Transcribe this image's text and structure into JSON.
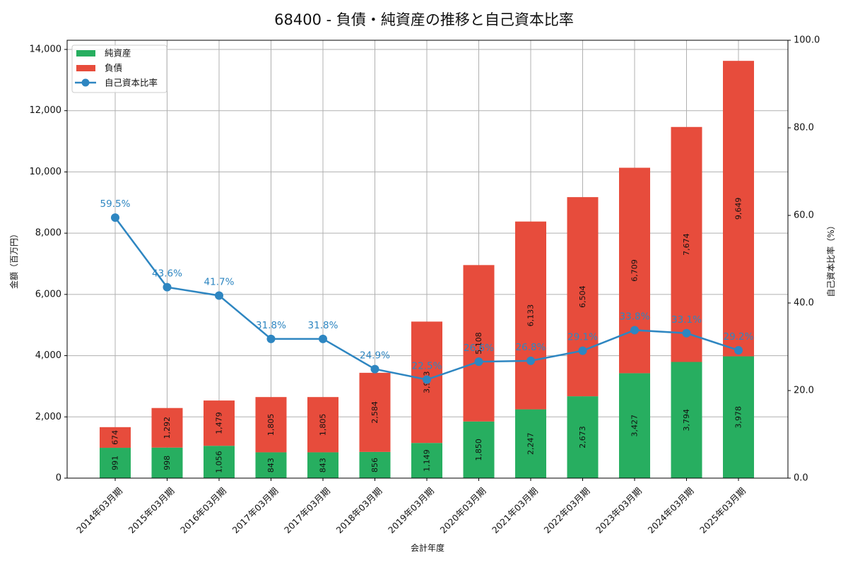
{
  "title": "68400 - 負債・純資産の推移と自己資本比率",
  "colors": {
    "net_assets": "#27ae60",
    "liabilities": "#e74c3c",
    "ratio": "#2e86c1",
    "grid": "#b0b0b0"
  },
  "legend": {
    "items": [
      {
        "label": "純資産",
        "type": "bar",
        "color": "#27ae60"
      },
      {
        "label": "負債",
        "type": "bar",
        "color": "#e74c3c"
      },
      {
        "label": "自己資本比率",
        "type": "line",
        "color": "#2e86c1"
      }
    ]
  },
  "axes": {
    "xlabel": "会計年度",
    "ylabel_left": "金額（百万円）",
    "ylabel_right": "自己資本比率（%）",
    "left_ticks": [
      "0",
      "2,000",
      "4,000",
      "6,000",
      "8,000",
      "10,000",
      "12,000",
      "14,000"
    ],
    "right_ticks": [
      "0.0",
      "20.0",
      "40.0",
      "60.0",
      "80.0",
      "100.0"
    ]
  },
  "chart_data": {
    "type": "bar",
    "stacked": true,
    "title": "68400 - 負債・純資産の推移と自己資本比率",
    "xlabel": "会計年度",
    "ylabel": "金額（百万円）",
    "ylabel_right": "自己資本比率（%）",
    "ylim": [
      0,
      14000
    ],
    "ylim_right": [
      0,
      100
    ],
    "grid": true,
    "legend_position": "upper left",
    "categories": [
      "2014年03月期",
      "2015年03月期",
      "2016年03月期",
      "2017年03月期",
      "2017年03月期",
      "2018年03月期",
      "2019年03月期",
      "2020年03月期",
      "2021年03月期",
      "2022年03月期",
      "2023年03月期",
      "2024年03月期",
      "2025年03月期"
    ],
    "series": [
      {
        "name": "純資産",
        "type": "bar",
        "axis": "left",
        "values": [
          991,
          998,
          1056,
          843,
          843,
          856,
          1149,
          1850,
          2247,
          2673,
          3427,
          3794,
          3978
        ]
      },
      {
        "name": "負債",
        "type": "bar",
        "axis": "left",
        "values": [
          674,
          1292,
          1479,
          1805,
          1805,
          2584,
          3963,
          5108,
          6133,
          6504,
          6709,
          7674,
          9649
        ]
      },
      {
        "name": "自己資本比率",
        "type": "line",
        "axis": "right",
        "values": [
          59.5,
          43.6,
          41.7,
          31.8,
          31.8,
          24.9,
          22.5,
          26.6,
          26.8,
          29.1,
          33.8,
          33.1,
          29.2
        ]
      }
    ]
  }
}
